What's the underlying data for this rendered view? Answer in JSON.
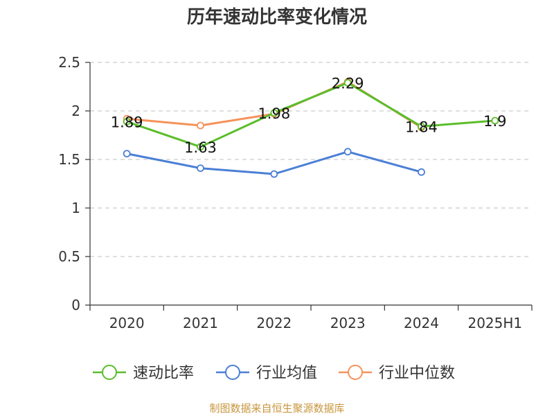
{
  "chart_data": {
    "type": "line",
    "title": "历年速动比率变化情况",
    "categories": [
      "2020",
      "2021",
      "2022",
      "2023",
      "2024",
      "2025H1"
    ],
    "ylim": [
      0,
      2.5
    ],
    "yticks": [
      "0",
      "0.5",
      "1",
      "1.5",
      "2",
      "2.5"
    ],
    "grid": true,
    "legend_position": "bottom",
    "series": [
      {
        "name": "速动比率",
        "color": "#5bbd2b",
        "values": [
          1.89,
          1.63,
          1.98,
          2.29,
          1.84,
          1.9
        ],
        "labels": [
          "1.89",
          "1.63",
          "1.98",
          "2.29",
          "1.84",
          "1.9"
        ]
      },
      {
        "name": "行业均值",
        "color": "#4a7fd6",
        "values": [
          1.56,
          1.41,
          1.35,
          1.58,
          1.37,
          null
        ]
      },
      {
        "name": "行业中位数",
        "color": "#f5925a",
        "values": [
          1.92,
          1.85,
          1.97,
          2.3,
          1.83,
          null
        ]
      }
    ]
  },
  "source": {
    "text": "制图数据来自恒生聚源数据库",
    "color": "#c8963e"
  }
}
